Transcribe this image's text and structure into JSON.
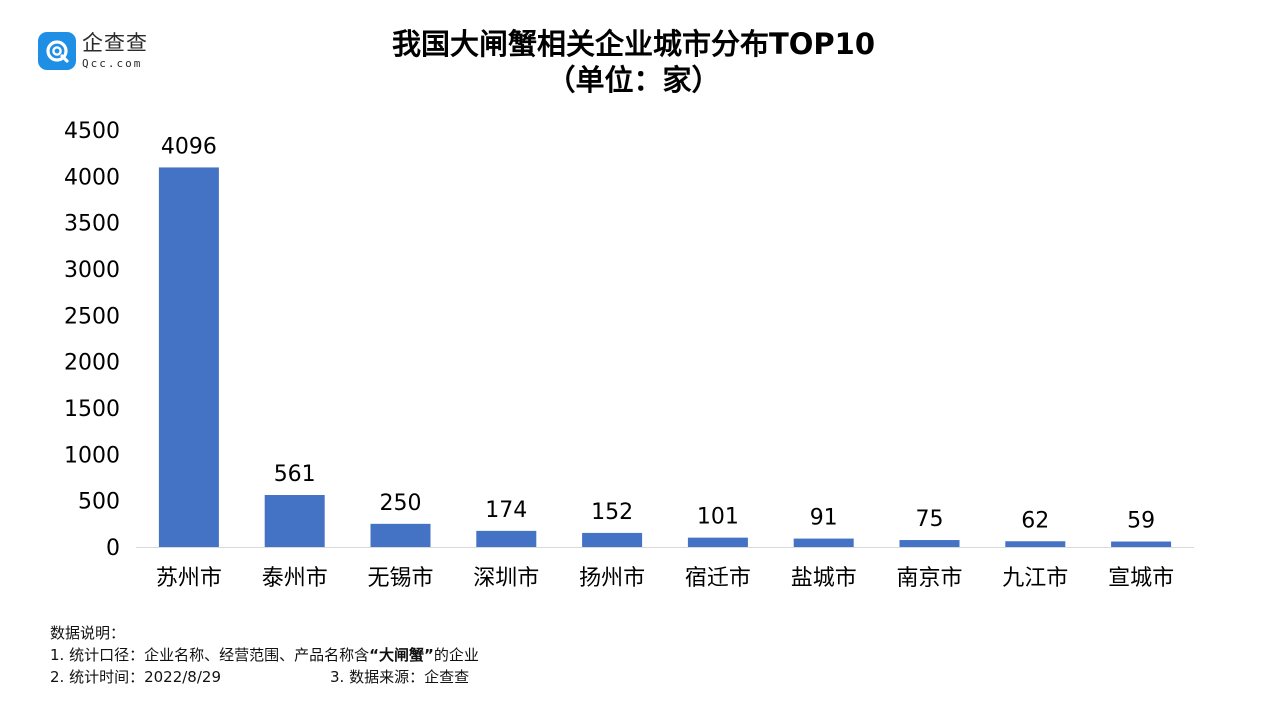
{
  "logo": {
    "name": "企查查",
    "domain": "Qcc.com",
    "color": "#1f8fe6"
  },
  "chart_data": {
    "type": "bar",
    "title": "我国大闸蟹相关企业城市分布TOP10",
    "subtitle": "（单位：家）",
    "categories": [
      "苏州市",
      "泰州市",
      "无锡市",
      "深圳市",
      "扬州市",
      "宿迁市",
      "盐城市",
      "南京市",
      "九江市",
      "宣城市"
    ],
    "values": [
      4096,
      561,
      250,
      174,
      152,
      101,
      91,
      75,
      62,
      59
    ],
    "ylim": [
      0,
      4500
    ],
    "yticks": [
      0,
      500,
      1000,
      1500,
      2000,
      2500,
      3000,
      3500,
      4000,
      4500
    ],
    "bar_color": "#4472c4",
    "grid": false,
    "legend": "none",
    "data_labels": true
  },
  "notes": {
    "heading": "数据说明：",
    "line1_prefix": "1. 统计口径：企业名称、经营范围、产品名称含",
    "line1_quoted": "“大闸蟹”",
    "line1_suffix": "的企业",
    "line2_time": "2. 统计时间：2022/8/29",
    "line2_source": "3. 数据来源：企查查"
  }
}
